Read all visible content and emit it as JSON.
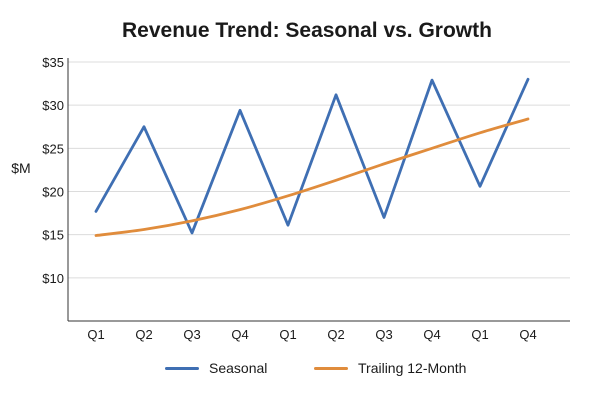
{
  "chart_data": {
    "type": "line",
    "title": "Revenue Trend: Seasonal vs. Growth",
    "xlabel": "",
    "ylabel": "$M",
    "categories": [
      "Q1",
      "Q2",
      "Q3",
      "Q4",
      "Q1",
      "Q2",
      "Q3",
      "Q4",
      "Q1",
      "Q4"
    ],
    "ylim": [
      5,
      35
    ],
    "yticks": [
      10,
      15,
      20,
      25,
      30,
      35
    ],
    "ytick_labels": [
      "$10",
      "$15",
      "$20",
      "$25",
      "$30",
      "$35"
    ],
    "grid": "horizontal",
    "legend_position": "bottom",
    "series": [
      {
        "name": "Seasonal",
        "color": "#3f6fb3",
        "values": [
          17.7,
          27.5,
          15.2,
          29.4,
          16.1,
          31.2,
          17.0,
          32.9,
          20.6,
          33.0
        ]
      },
      {
        "name": "Trailing 12-Month",
        "color": "#e08c3c",
        "values": [
          14.9,
          15.6,
          16.6,
          17.9,
          19.5,
          21.3,
          23.2,
          25.0,
          26.8,
          28.4
        ]
      }
    ]
  }
}
